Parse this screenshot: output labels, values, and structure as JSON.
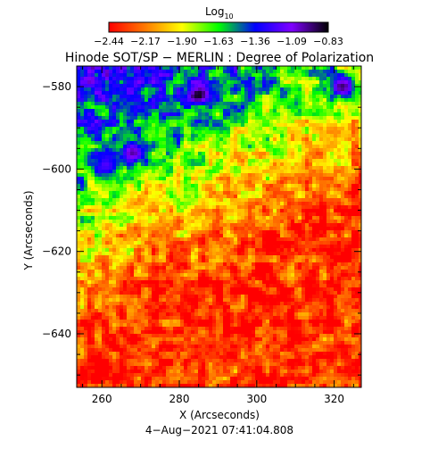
{
  "chart_data": {
    "type": "heatmap",
    "title": "Hinode SOT/SP − MERLIN : Degree of Polarization",
    "colorbar": {
      "label": "Log",
      "label_subscript": "10",
      "ticks": [
        "−2.44",
        "−2.17",
        "−1.90",
        "−1.63",
        "−1.36",
        "−1.09",
        "−0.83"
      ],
      "range": [
        -2.44,
        -0.83
      ],
      "colormap": [
        "#ff0000",
        "#ff7a00",
        "#ffff00",
        "#00ff00",
        "#0000ff",
        "#8000ff",
        "#000000"
      ]
    },
    "xlabel": "X (Arcseconds)",
    "ylabel": "Y (Arcseconds)",
    "x_ticks": [
      {
        "value": 260,
        "label": "260"
      },
      {
        "value": 280,
        "label": "280"
      },
      {
        "value": 300,
        "label": "300"
      },
      {
        "value": 320,
        "label": "320"
      }
    ],
    "y_ticks": [
      {
        "value": -580,
        "label": "−580"
      },
      {
        "value": -600,
        "label": "−600"
      },
      {
        "value": -620,
        "label": "−620"
      },
      {
        "value": -640,
        "label": "−640"
      }
    ],
    "xlim": [
      253.5,
      327
    ],
    "ylim": [
      -653,
      -575
    ],
    "features": [
      {
        "x": 285,
        "y": -582,
        "value": -0.85
      },
      {
        "x": 268,
        "y": -596,
        "value": -1.0
      },
      {
        "x": 261,
        "y": -599,
        "value": -1.2
      },
      {
        "x": 322,
        "y": -580,
        "value": -0.95
      }
    ],
    "timestamp": "4−Aug−2021 07:41:04.808"
  }
}
